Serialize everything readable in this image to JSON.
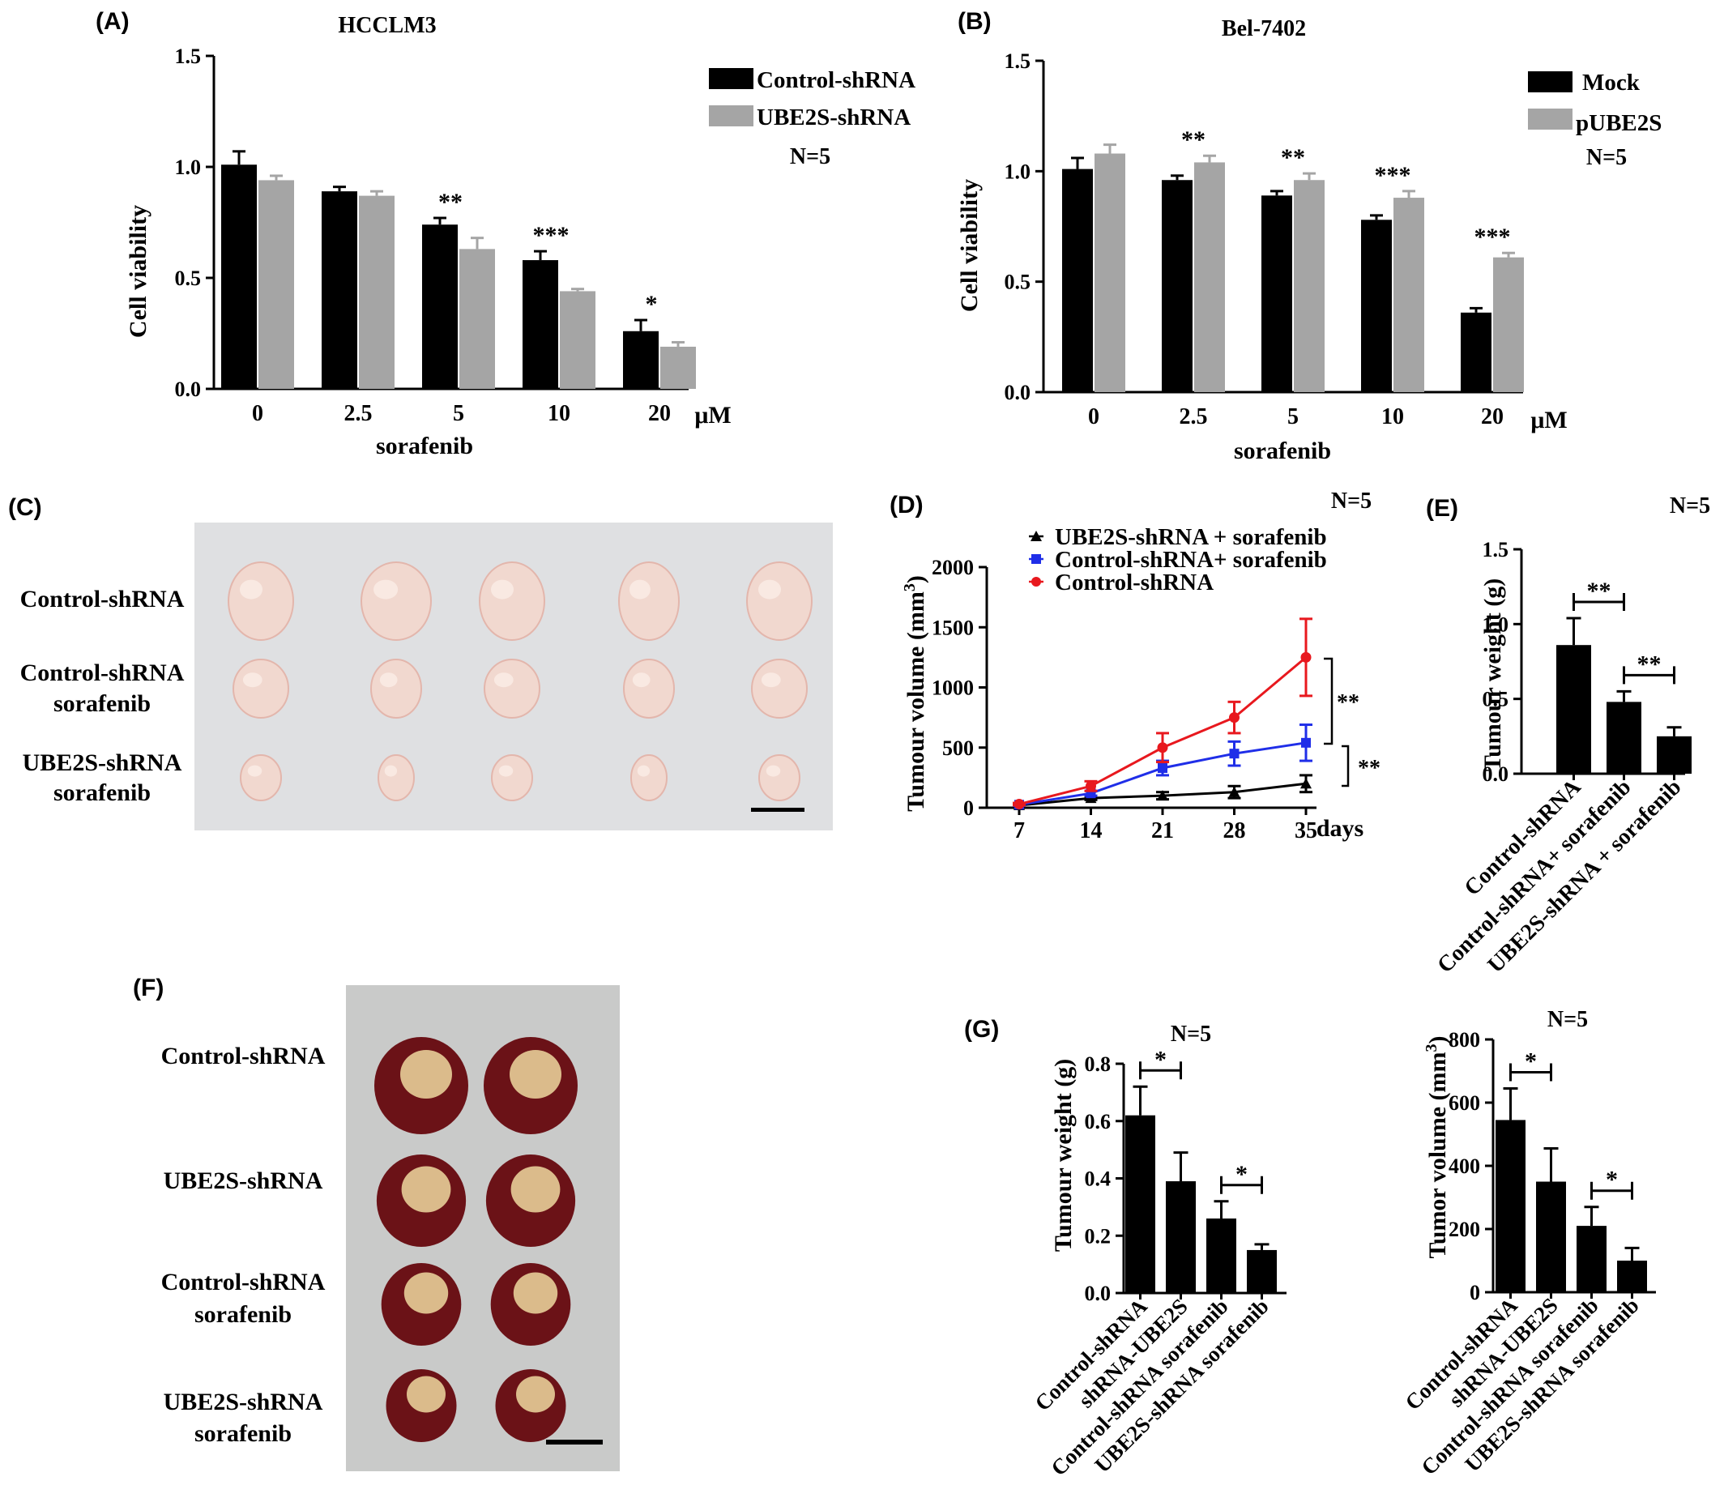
{
  "colors": {
    "black_bar": "#000000",
    "gray_bar": "#a5a5a5",
    "line_black": "#000000",
    "line_blue": "#1f2ee8",
    "line_red": "#e8181e",
    "photo_bg_c": "#dedfe1",
    "photo_bg_f": "#c8c8c7",
    "tumor_pale": "#f1d8cf",
    "liver_red": "#6b1217"
  },
  "panel_a": {
    "label": "(A)",
    "n": "N=5",
    "chart_data": {
      "type": "bar",
      "title": "HCCLM3",
      "xlabel": "sorafenib",
      "ylabel": "Cell viability",
      "unit": "μM",
      "categories": [
        "0",
        "2.5",
        "5",
        "10",
        "20"
      ],
      "series": [
        {
          "name": "Control-shRNA",
          "color": "#000000",
          "values": [
            1.01,
            0.89,
            0.74,
            0.58,
            0.26
          ],
          "errors": [
            0.06,
            0.02,
            0.03,
            0.04,
            0.05
          ]
        },
        {
          "name": "UBE2S-shRNA",
          "color": "#a5a5a5",
          "values": [
            0.94,
            0.87,
            0.63,
            0.44,
            0.19
          ],
          "errors": [
            0.02,
            0.02,
            0.05,
            0.01,
            0.02
          ]
        }
      ],
      "significance": [
        "",
        "",
        "**",
        "***",
        "*"
      ],
      "ylim": [
        0,
        1.5
      ],
      "yticks": [
        "0.0",
        "0.5",
        "1.0",
        "1.5"
      ],
      "legend_position": "top-right"
    }
  },
  "panel_b": {
    "label": "(B)",
    "n": "N=5",
    "chart_data": {
      "type": "bar",
      "title": "Bel-7402",
      "xlabel": "sorafenib",
      "ylabel": "Cell viability",
      "unit": "μM",
      "categories": [
        "0",
        "2.5",
        "5",
        "10",
        "20"
      ],
      "series": [
        {
          "name": "Mock",
          "color": "#000000",
          "values": [
            1.01,
            0.96,
            0.89,
            0.78,
            0.36
          ],
          "errors": [
            0.05,
            0.02,
            0.02,
            0.02,
            0.02
          ]
        },
        {
          "name": "pUBE2S",
          "color": "#a5a5a5",
          "values": [
            1.08,
            1.04,
            0.96,
            0.88,
            0.61
          ],
          "errors": [
            0.04,
            0.03,
            0.03,
            0.03,
            0.02
          ]
        }
      ],
      "significance": [
        "",
        "**",
        "**",
        "***",
        "***"
      ],
      "ylim": [
        0,
        1.5
      ],
      "yticks": [
        "0.0",
        "0.5",
        "1.0",
        "1.5"
      ],
      "legend_position": "top-right"
    }
  },
  "panel_c": {
    "label": "(C)",
    "rows": [
      {
        "line1": "Control-shRNA",
        "line2": ""
      },
      {
        "line1": "Control-shRNA",
        "line2": "sorafenib"
      },
      {
        "line1": "UBE2S-shRNA",
        "line2": "sorafenib"
      }
    ]
  },
  "panel_d": {
    "label": "(D)",
    "n": "N=5",
    "chart_data": {
      "type": "line",
      "xlabel": "days",
      "ylabel_main": "Tumour volume (mm",
      "ylabel_sup": "3",
      "ylabel_end": ")",
      "x": [
        7,
        14,
        21,
        28,
        35
      ],
      "xticks": [
        "7",
        "14",
        "21",
        "28",
        "35"
      ],
      "series": [
        {
          "name": "UBE2S-shRNA + sorafenib",
          "color": "#000000",
          "marker": "triangle",
          "values": [
            20,
            80,
            100,
            130,
            200
          ],
          "errors": [
            10,
            15,
            30,
            50,
            70
          ]
        },
        {
          "name": "Control-shRNA+ sorafenib",
          "color": "#1f2ee8",
          "marker": "square",
          "values": [
            25,
            120,
            330,
            450,
            540
          ],
          "errors": [
            10,
            20,
            60,
            100,
            150
          ]
        },
        {
          "name": "Control-shRNA",
          "color": "#e8181e",
          "marker": "circle",
          "values": [
            30,
            180,
            500,
            750,
            1250
          ],
          "errors": [
            10,
            40,
            120,
            130,
            320
          ]
        }
      ],
      "significance": [
        "**",
        "**"
      ],
      "ylim": [
        0,
        2000
      ],
      "yticks": [
        "0",
        "500",
        "1000",
        "1500",
        "2000"
      ],
      "legend_position": "top"
    }
  },
  "panel_e": {
    "label": "(E)",
    "n": "N=5",
    "chart_data": {
      "type": "bar",
      "ylabel": "Tumour weight (g)",
      "categories": [
        "Control-shRNA",
        "Control-shRNA+ sorafenib",
        "UBE2S-shRNA + sorafenib"
      ],
      "values": [
        0.86,
        0.48,
        0.25
      ],
      "errors": [
        0.18,
        0.07,
        0.06
      ],
      "significance": [
        "**",
        "**"
      ],
      "ylim": [
        0,
        1.5
      ],
      "yticks": [
        "0.0",
        "0.5",
        "1.0",
        "1.5"
      ]
    }
  },
  "panel_f": {
    "label": "(F)",
    "rows": [
      {
        "line1": "Control-shRNA",
        "line2": ""
      },
      {
        "line1": "UBE2S-shRNA",
        "line2": ""
      },
      {
        "line1": "Control-shRNA",
        "line2": "sorafenib"
      },
      {
        "line1": "UBE2S-shRNA",
        "line2": "sorafenib"
      }
    ]
  },
  "panel_g": {
    "label": "(G)",
    "charts": [
      {
        "n": "N=5",
        "chart_data": {
          "type": "bar",
          "ylabel": "Tumour weight (g)",
          "categories": [
            "Control-shRNA",
            "shRNA-UBE2S",
            "Control-shRNA  sorafenib",
            "UBE2S-shRNA  sorafenib"
          ],
          "values": [
            0.62,
            0.39,
            0.26,
            0.15
          ],
          "errors": [
            0.1,
            0.1,
            0.06,
            0.02
          ],
          "significance": [
            "*",
            "*"
          ],
          "ylim": [
            0,
            0.8
          ],
          "yticks": [
            "0.0",
            "0.2",
            "0.4",
            "0.6",
            "0.8"
          ]
        }
      },
      {
        "n": "N=5",
        "chart_data": {
          "type": "bar",
          "ylabel_main": "Tumor volume (mm",
          "ylabel_sup": "3",
          "ylabel_end": ")",
          "categories": [
            "Control-shRNA",
            "shRNA-UBE2S",
            "Control-shRNA  sorafenib",
            "UBE2S-shRNA  sorafenib"
          ],
          "values": [
            545,
            350,
            210,
            100
          ],
          "errors": [
            100,
            105,
            60,
            40
          ],
          "significance": [
            "*",
            "*"
          ],
          "ylim": [
            0,
            800
          ],
          "yticks": [
            "0",
            "200",
            "400",
            "600",
            "800"
          ]
        }
      }
    ]
  }
}
